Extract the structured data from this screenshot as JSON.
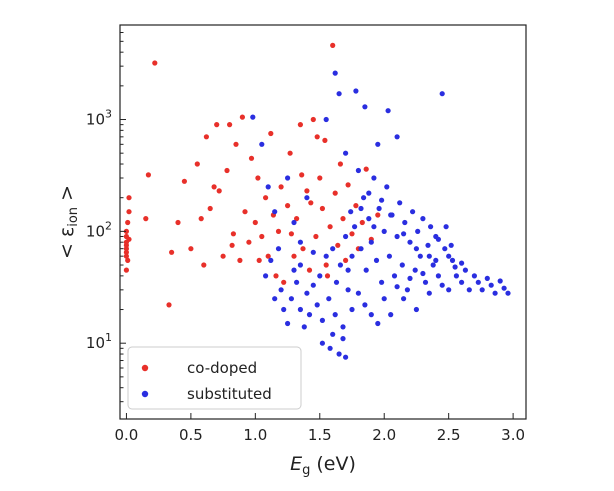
{
  "chart_data": {
    "type": "scatter",
    "title": "",
    "xlabel": {
      "main": "E",
      "sub": "g",
      "rest": " (eV)"
    },
    "ylabel": {
      "pre": "< ε",
      "sub": "ion",
      "post": " >"
    },
    "xlim": [
      -0.05,
      3.1
    ],
    "ylim": [
      2.1,
      7000
    ],
    "yscale": "log",
    "grid": false,
    "legend_position": "lower-left",
    "x_ticks": [
      {
        "value": 0.0,
        "label": "0.0"
      },
      {
        "value": 0.5,
        "label": "0.5"
      },
      {
        "value": 1.0,
        "label": "1.0"
      },
      {
        "value": 1.5,
        "label": "1.5"
      },
      {
        "value": 2.0,
        "label": "2.0"
      },
      {
        "value": 2.5,
        "label": "2.5"
      },
      {
        "value": 3.0,
        "label": "3.0"
      }
    ],
    "y_ticks": [
      {
        "value": 10,
        "base": "10",
        "exp": "1"
      },
      {
        "value": 100,
        "base": "10",
        "exp": "2"
      },
      {
        "value": 1000,
        "base": "10",
        "exp": "3"
      }
    ],
    "series": [
      {
        "name": "co-doped",
        "color": "#e8302a",
        "points": [
          [
            0.0,
            45
          ],
          [
            0.0,
            60
          ],
          [
            0.0,
            65
          ],
          [
            0.0,
            70
          ],
          [
            0.0,
            75
          ],
          [
            0.0,
            80
          ],
          [
            0.0,
            90
          ],
          [
            0.0,
            100
          ],
          [
            0.01,
            120
          ],
          [
            0.02,
            150
          ],
          [
            0.02,
            200
          ],
          [
            0.01,
            55
          ],
          [
            0.02,
            85
          ],
          [
            0.15,
            130
          ],
          [
            0.17,
            320
          ],
          [
            0.22,
            3200
          ],
          [
            0.33,
            22
          ],
          [
            0.35,
            65
          ],
          [
            0.4,
            120
          ],
          [
            0.45,
            280
          ],
          [
            0.5,
            70
          ],
          [
            0.55,
            400
          ],
          [
            0.58,
            130
          ],
          [
            0.6,
            50
          ],
          [
            0.62,
            700
          ],
          [
            0.65,
            160
          ],
          [
            0.7,
            900
          ],
          [
            0.72,
            230
          ],
          [
            0.75,
            60
          ],
          [
            0.78,
            350
          ],
          [
            0.8,
            900
          ],
          [
            0.83,
            95
          ],
          [
            0.85,
            600
          ],
          [
            0.88,
            55
          ],
          [
            0.9,
            1050
          ],
          [
            0.92,
            150
          ],
          [
            0.95,
            80
          ],
          [
            0.97,
            450
          ],
          [
            1.0,
            120
          ],
          [
            1.02,
            300
          ],
          [
            1.05,
            90
          ],
          [
            1.08,
            200
          ],
          [
            1.1,
            60
          ],
          [
            1.12,
            750
          ],
          [
            1.14,
            140
          ],
          [
            1.16,
            40
          ],
          [
            1.18,
            100
          ],
          [
            1.2,
            250
          ],
          [
            1.22,
            35
          ],
          [
            1.25,
            170
          ],
          [
            1.27,
            500
          ],
          [
            1.3,
            60
          ],
          [
            1.32,
            130
          ],
          [
            1.35,
            900
          ],
          [
            1.37,
            70
          ],
          [
            1.4,
            230
          ],
          [
            1.42,
            45
          ],
          [
            1.45,
            1000
          ],
          [
            1.47,
            90
          ],
          [
            1.5,
            300
          ],
          [
            1.52,
            160
          ],
          [
            1.54,
            650
          ],
          [
            1.56,
            40
          ],
          [
            1.58,
            110
          ],
          [
            1.6,
            4600
          ],
          [
            1.62,
            220
          ],
          [
            1.64,
            75
          ],
          [
            1.66,
            400
          ],
          [
            1.68,
            130
          ],
          [
            1.7,
            55
          ],
          [
            1.72,
            260
          ],
          [
            1.75,
            95
          ],
          [
            1.78,
            170
          ],
          [
            1.8,
            70
          ],
          [
            1.83,
            120
          ],
          [
            1.86,
            360
          ],
          [
            1.9,
            85
          ],
          [
            1.95,
            140
          ],
          [
            0.68,
            250
          ],
          [
            0.82,
            75
          ],
          [
            1.03,
            55
          ],
          [
            1.28,
            95
          ],
          [
            1.43,
            180
          ],
          [
            1.48,
            700
          ],
          [
            1.36,
            320
          ],
          [
            1.55,
            50
          ]
        ]
      },
      {
        "name": "substituted",
        "color": "#2a2ee0",
        "points": [
          [
            0.98,
            1050
          ],
          [
            1.05,
            600
          ],
          [
            1.1,
            250
          ],
          [
            1.15,
            150
          ],
          [
            1.18,
            70
          ],
          [
            1.2,
            30
          ],
          [
            1.22,
            20
          ],
          [
            1.25,
            15
          ],
          [
            1.28,
            25
          ],
          [
            1.3,
            45
          ],
          [
            1.32,
            35
          ],
          [
            1.35,
            20
          ],
          [
            1.38,
            14
          ],
          [
            1.4,
            28
          ],
          [
            1.42,
            18
          ],
          [
            1.45,
            33
          ],
          [
            1.48,
            22
          ],
          [
            1.5,
            40
          ],
          [
            1.52,
            16
          ],
          [
            1.55,
            60
          ],
          [
            1.57,
            25
          ],
          [
            1.6,
            12
          ],
          [
            1.62,
            18
          ],
          [
            1.63,
            35
          ],
          [
            1.65,
            8
          ],
          [
            1.66,
            50
          ],
          [
            1.68,
            14
          ],
          [
            1.7,
            7.5
          ],
          [
            1.7,
            90
          ],
          [
            1.72,
            30
          ],
          [
            1.74,
            150
          ],
          [
            1.75,
            60
          ],
          [
            1.77,
            110
          ],
          [
            1.78,
            1800
          ],
          [
            1.8,
            350
          ],
          [
            1.82,
            70
          ],
          [
            1.84,
            200
          ],
          [
            1.86,
            45
          ],
          [
            1.88,
            130
          ],
          [
            1.9,
            80
          ],
          [
            1.92,
            300
          ],
          [
            1.94,
            55
          ],
          [
            1.96,
            160
          ],
          [
            1.98,
            35
          ],
          [
            2.0,
            100
          ],
          [
            2.02,
            250
          ],
          [
            2.04,
            60
          ],
          [
            2.06,
            140
          ],
          [
            2.08,
            40
          ],
          [
            2.1,
            90
          ],
          [
            2.12,
            180
          ],
          [
            2.14,
            50
          ],
          [
            2.16,
            120
          ],
          [
            2.18,
            30
          ],
          [
            2.2,
            80
          ],
          [
            2.22,
            150
          ],
          [
            2.24,
            45
          ],
          [
            2.26,
            100
          ],
          [
            2.28,
            60
          ],
          [
            2.3,
            130
          ],
          [
            2.32,
            35
          ],
          [
            2.34,
            75
          ],
          [
            2.36,
            110
          ],
          [
            2.38,
            50
          ],
          [
            2.4,
            90
          ],
          [
            2.42,
            40
          ],
          [
            2.45,
            1700
          ],
          [
            2.47,
            70
          ],
          [
            2.5,
            30
          ],
          [
            2.53,
            55
          ],
          [
            2.56,
            40
          ],
          [
            2.6,
            35
          ],
          [
            2.63,
            45
          ],
          [
            2.66,
            30
          ],
          [
            2.7,
            40
          ],
          [
            2.73,
            35
          ],
          [
            2.76,
            30
          ],
          [
            2.8,
            38
          ],
          [
            2.83,
            33
          ],
          [
            2.86,
            28
          ],
          [
            2.9,
            36
          ],
          [
            2.93,
            31
          ],
          [
            2.96,
            28
          ],
          [
            1.55,
            1000
          ],
          [
            1.62,
            2600
          ],
          [
            1.65,
            1700
          ],
          [
            1.85,
            1300
          ],
          [
            2.03,
            1200
          ],
          [
            2.1,
            700
          ],
          [
            1.95,
            600
          ],
          [
            1.7,
            500
          ],
          [
            1.4,
            200
          ],
          [
            1.3,
            120
          ],
          [
            1.25,
            300
          ],
          [
            1.35,
            80
          ],
          [
            2.15,
            25
          ],
          [
            2.25,
            20
          ],
          [
            2.05,
            18
          ],
          [
            1.95,
            15
          ],
          [
            1.85,
            22
          ],
          [
            2.35,
            28
          ],
          [
            2.45,
            33
          ],
          [
            1.52,
            10
          ],
          [
            1.58,
            9
          ],
          [
            1.68,
            11
          ],
          [
            1.75,
            20
          ],
          [
            1.8,
            28
          ],
          [
            1.9,
            18
          ],
          [
            2.0,
            25
          ],
          [
            2.1,
            32
          ],
          [
            2.2,
            38
          ],
          [
            2.3,
            42
          ],
          [
            2.4,
            55
          ],
          [
            2.5,
            60
          ],
          [
            2.55,
            48
          ],
          [
            2.6,
            52
          ],
          [
            1.12,
            55
          ],
          [
            1.08,
            40
          ],
          [
            1.15,
            25
          ],
          [
            1.35,
            50
          ],
          [
            1.45,
            65
          ],
          [
            1.6,
            70
          ],
          [
            1.72,
            45
          ],
          [
            1.82,
            160
          ],
          [
            1.88,
            220
          ],
          [
            1.92,
            110
          ],
          [
            1.98,
            190
          ],
          [
            2.05,
            140
          ],
          [
            2.15,
            95
          ],
          [
            2.25,
            70
          ],
          [
            2.35,
            60
          ],
          [
            2.42,
            85
          ],
          [
            2.48,
            110
          ],
          [
            2.52,
            75
          ]
        ]
      }
    ]
  }
}
